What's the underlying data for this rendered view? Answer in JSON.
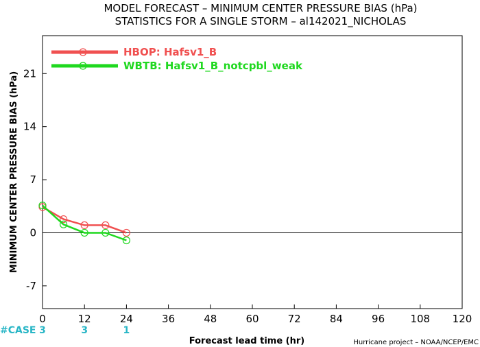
{
  "title_line1": "MODEL FORECAST – MINIMUM CENTER PRESSURE BIAS (hPa)",
  "title_line2": "STATISTICS FOR A SINGLE STORM – al142021_NICHOLAS",
  "credit": "Hurricane project – NOAA/NCEP/EMC",
  "case_label": "#CASE",
  "case_color": "#29b6c6",
  "chart_data": {
    "type": "line",
    "xlabel": "Forecast lead time (hr)",
    "ylabel": "MINIMUM CENTER PRESSURE BIAS (hPa)",
    "xlim": [
      0,
      120
    ],
    "ylim": [
      -10,
      26
    ],
    "x_ticks": [
      0,
      12,
      24,
      36,
      48,
      60,
      72,
      84,
      96,
      108,
      120
    ],
    "y_ticks": [
      -7,
      0,
      7,
      14,
      21
    ],
    "x": [
      0,
      6,
      12,
      18,
      24
    ],
    "series": [
      {
        "name": "HBOP: Hafsv1_B",
        "color": "#f05050",
        "values": [
          3.4,
          1.8,
          1.0,
          1.0,
          0.0
        ]
      },
      {
        "name": "WBTB: Hafsv1_B_notcpbl_weak",
        "color": "#1fd81f",
        "values": [
          3.6,
          1.1,
          0.0,
          0.0,
          -1.0
        ]
      }
    ],
    "zero_line": true,
    "grid": false,
    "legend": "top-left",
    "case_counts": [
      {
        "x": 0,
        "count": "3"
      },
      {
        "x": 12,
        "count": "3"
      },
      {
        "x": 24,
        "count": "1"
      }
    ]
  }
}
